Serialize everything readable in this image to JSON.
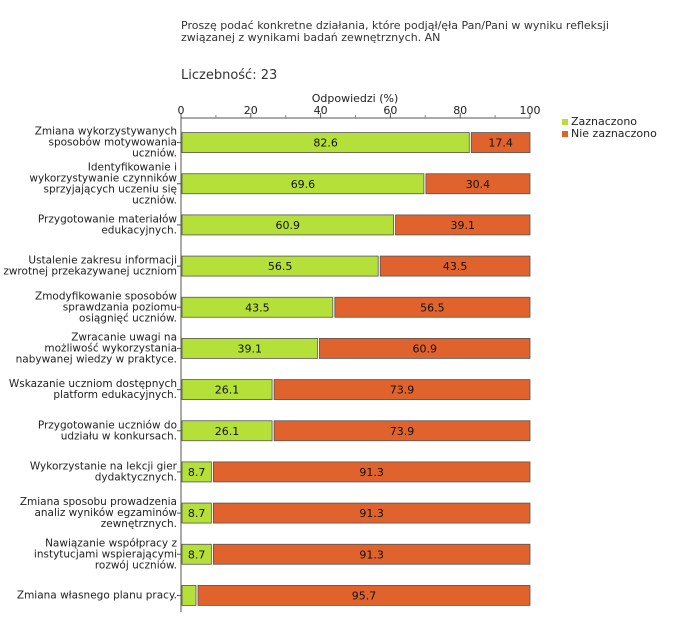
{
  "chart_data": {
    "type": "bar",
    "orientation": "horizontal",
    "stacked": true,
    "title": "Proszę podać konkretne działania, które podjął/ęła Pan/Pani w wyniku refleksji związanej z wynikami badań zewnętrznych. AN",
    "title_lines": [
      "Proszę podać konkretne działania, które podjął/ęła Pan/Pani w wyniku refleksji",
      "związanej z wynikami badań zewnętrznych. AN"
    ],
    "count_label": "Liczebność: 23",
    "xlabel": "Odpowiedzi (%)",
    "xlim": [
      0,
      100
    ],
    "xticks": [
      0,
      20,
      40,
      60,
      80,
      100
    ],
    "legend_position": "right",
    "categories": [
      "Zmiana wykorzystywanych sposobów motywowania uczniów.",
      "Identyfikowanie i wykorzystywanie czynników sprzyjających uczeniu się uczniów.",
      "Przygotowanie materiałów edukacyjnych.",
      "Ustalenie zakresu informacji zwrotnej przekazywanej uczniom",
      "Zmodyfikowanie sposobów sprawdzania poziomu osiągnięć uczniów.",
      "Zwracanie uwagi na możliwość wykorzystania nabywanej wiedzy w praktyce.",
      "Wskazanie uczniom dostępnych platform edukacyjnych.",
      "Przygotowanie uczniów do udziału w konkursach.",
      "Wykorzystanie na lekcji gier dydaktycznych.",
      "Zmiana sposobu prowadzenia analiz wyników egzaminów zewnętrznych.",
      "Nawiązanie współpracy z instytucjami wspierającymi rozwój uczniów.",
      "Zmiana własnego planu pracy."
    ],
    "category_lines": [
      [
        "Zmiana wykorzystywanych",
        "sposobów motywowania",
        "uczniów."
      ],
      [
        "Identyfikowanie i",
        "wykorzystywanie czynników",
        "sprzyjających uczeniu się",
        "uczniów."
      ],
      [
        "Przygotowanie materiałów",
        "edukacyjnych."
      ],
      [
        "Ustalenie zakresu informacji",
        "zwrotnej przekazywanej uczniom"
      ],
      [
        "Zmodyfikowanie sposobów",
        "sprawdzania poziomu",
        "osiągnięć uczniów."
      ],
      [
        "Zwracanie uwagi na",
        "możliwość wykorzystania",
        "nabywanej wiedzy w praktyce."
      ],
      [
        "Wskazanie uczniom dostępnych",
        "platform edukacyjnych."
      ],
      [
        "Przygotowanie uczniów do",
        "udziału w konkursach."
      ],
      [
        "Wykorzystanie na lekcji gier",
        "dydaktycznych."
      ],
      [
        "Zmiana sposobu prowadzenia",
        "analiz wyników egzaminów",
        "zewnętrznych."
      ],
      [
        "Nawiązanie współpracy z",
        "instytucjami wspierającymi",
        "rozwój uczniów."
      ],
      [
        "Zmiana własnego planu pracy."
      ]
    ],
    "series": [
      {
        "name": "Zaznaczono",
        "color": "#b5e03a",
        "values": [
          82.6,
          69.6,
          60.9,
          56.5,
          43.5,
          39.1,
          26.1,
          26.1,
          8.7,
          8.7,
          8.7,
          4.3
        ],
        "labels": [
          "82.6",
          "69.6",
          "60.9",
          "56.5",
          "43.5",
          "39.1",
          "26.1",
          "26.1",
          "8.7",
          "8.7",
          "8.7",
          ""
        ]
      },
      {
        "name": "Nie zaznaczono",
        "color": "#e0622d",
        "values": [
          17.4,
          30.4,
          39.1,
          43.5,
          56.5,
          60.9,
          73.9,
          73.9,
          91.3,
          91.3,
          91.3,
          95.7
        ],
        "labels": [
          "17.4",
          "30.4",
          "39.1",
          "43.5",
          "56.5",
          "60.9",
          "73.9",
          "73.9",
          "91.3",
          "91.3",
          "91.3",
          "95.7"
        ]
      }
    ]
  }
}
